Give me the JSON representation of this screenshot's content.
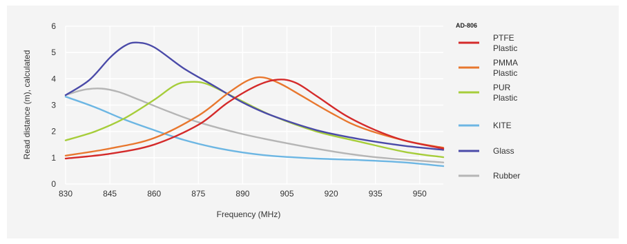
{
  "chart_data": {
    "type": "line",
    "title": "",
    "xlabel": "Frequency (MHz)",
    "ylabel": "Read distance (m), calculated",
    "xlim": [
      830,
      958
    ],
    "ylim": [
      0,
      6
    ],
    "x_ticks": [
      830,
      845,
      860,
      875,
      890,
      905,
      920,
      935,
      950
    ],
    "y_ticks": [
      0,
      1,
      2,
      3,
      4,
      5,
      6
    ],
    "grid": "horizontal",
    "legend_title": "AD-806",
    "legend_position": "right",
    "series": [
      {
        "name": "PTFE Plastic",
        "color": "#d42a2a",
        "points": [
          [
            830,
            0.97
          ],
          [
            845,
            1.15
          ],
          [
            860,
            1.5
          ],
          [
            875,
            2.25
          ],
          [
            885,
            3.1
          ],
          [
            895,
            3.75
          ],
          [
            902,
            3.97
          ],
          [
            908,
            3.85
          ],
          [
            915,
            3.35
          ],
          [
            925,
            2.6
          ],
          [
            935,
            2.05
          ],
          [
            945,
            1.65
          ],
          [
            958,
            1.35
          ]
        ]
      },
      {
        "name": "PMMA Plastic",
        "color": "#e8772e",
        "points": [
          [
            830,
            1.08
          ],
          [
            845,
            1.35
          ],
          [
            860,
            1.75
          ],
          [
            875,
            2.6
          ],
          [
            885,
            3.45
          ],
          [
            892,
            3.95
          ],
          [
            897,
            4.05
          ],
          [
            903,
            3.8
          ],
          [
            910,
            3.35
          ],
          [
            920,
            2.7
          ],
          [
            930,
            2.15
          ],
          [
            945,
            1.65
          ],
          [
            958,
            1.38
          ]
        ]
      },
      {
        "name": "PUR Plastic",
        "color": "#a6cd3a",
        "points": [
          [
            830,
            1.66
          ],
          [
            840,
            2.0
          ],
          [
            850,
            2.5
          ],
          [
            860,
            3.2
          ],
          [
            867,
            3.75
          ],
          [
            872,
            3.88
          ],
          [
            878,
            3.8
          ],
          [
            888,
            3.25
          ],
          [
            900,
            2.6
          ],
          [
            915,
            2.0
          ],
          [
            930,
            1.6
          ],
          [
            945,
            1.22
          ],
          [
            958,
            1.02
          ]
        ]
      },
      {
        "name": "KITE",
        "color": "#6cb6e3",
        "points": [
          [
            830,
            3.32
          ],
          [
            840,
            2.92
          ],
          [
            850,
            2.45
          ],
          [
            860,
            2.05
          ],
          [
            870,
            1.68
          ],
          [
            880,
            1.4
          ],
          [
            890,
            1.2
          ],
          [
            900,
            1.07
          ],
          [
            915,
            0.97
          ],
          [
            930,
            0.91
          ],
          [
            945,
            0.82
          ],
          [
            958,
            0.68
          ]
        ]
      },
      {
        "name": "Glass",
        "color": "#4a4aa8",
        "points": [
          [
            830,
            3.38
          ],
          [
            838,
            3.95
          ],
          [
            845,
            4.8
          ],
          [
            850,
            5.25
          ],
          [
            854,
            5.38
          ],
          [
            860,
            5.2
          ],
          [
            870,
            4.4
          ],
          [
            880,
            3.75
          ],
          [
            890,
            3.1
          ],
          [
            900,
            2.6
          ],
          [
            915,
            2.05
          ],
          [
            930,
            1.7
          ],
          [
            945,
            1.45
          ],
          [
            958,
            1.3
          ]
        ]
      },
      {
        "name": "Rubber",
        "color": "#b5b5b5",
        "points": [
          [
            830,
            3.38
          ],
          [
            836,
            3.58
          ],
          [
            842,
            3.63
          ],
          [
            848,
            3.5
          ],
          [
            855,
            3.2
          ],
          [
            865,
            2.75
          ],
          [
            875,
            2.35
          ],
          [
            890,
            1.9
          ],
          [
            905,
            1.55
          ],
          [
            920,
            1.25
          ],
          [
            935,
            1.02
          ],
          [
            958,
            0.82
          ]
        ]
      }
    ]
  }
}
